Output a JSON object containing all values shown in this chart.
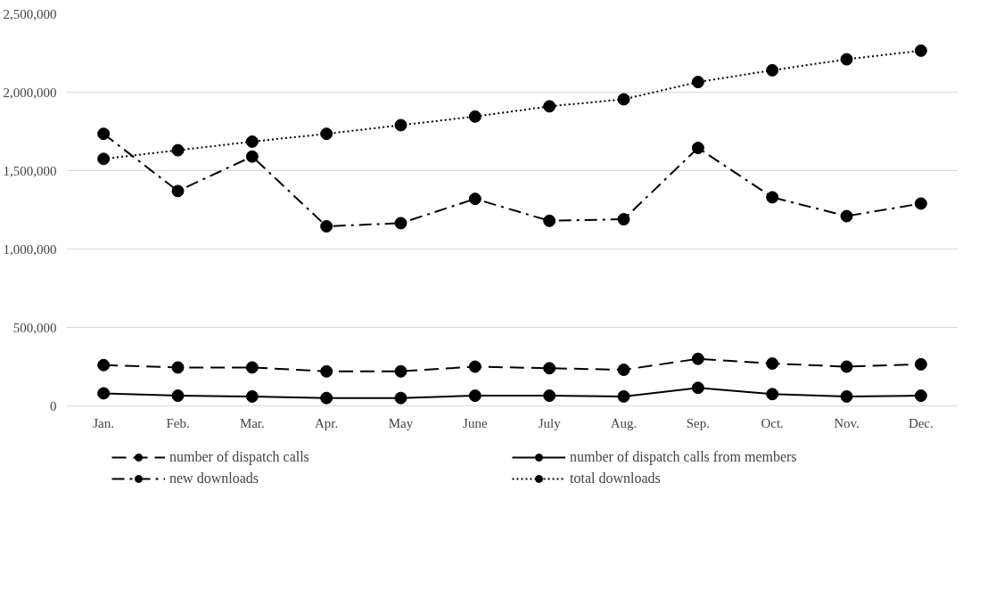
{
  "chart_data": {
    "type": "line",
    "categories": [
      "Jan.",
      "Feb.",
      "Mar.",
      "Apr.",
      "May",
      "June",
      "July",
      "Aug.",
      "Sep.",
      "Oct.",
      "Nov.",
      "Dec."
    ],
    "series": [
      {
        "name": "number of dispatch calls",
        "color": "#000000",
        "line_style": "dashed",
        "values": [
          260000,
          245000,
          245000,
          220000,
          220000,
          250000,
          240000,
          230000,
          300000,
          270000,
          250000,
          265000
        ]
      },
      {
        "name": "number of dispatch calls from members",
        "color": "#000000",
        "line_style": "solid",
        "values": [
          80000,
          65000,
          60000,
          50000,
          50000,
          65000,
          65000,
          60000,
          115000,
          75000,
          60000,
          65000
        ]
      },
      {
        "name": "new downloads",
        "color": "#000000",
        "line_style": "dashdot",
        "values": [
          1735000,
          1370000,
          1590000,
          1145000,
          1165000,
          1320000,
          1180000,
          1190000,
          1645000,
          1330000,
          1210000,
          1290000
        ]
      },
      {
        "name": "total downloads",
        "color": "#000000",
        "line_style": "dotted",
        "values": [
          1575000,
          1630000,
          1685000,
          1735000,
          1790000,
          1845000,
          1910000,
          1955000,
          2065000,
          2140000,
          2210000,
          2265000
        ]
      }
    ],
    "ylim": [
      0,
      2500000
    ],
    "yticks": [
      {
        "value": 0,
        "label": "0"
      },
      {
        "value": 500000,
        "label": "500,000"
      },
      {
        "value": 1000000,
        "label": "1,000,000"
      },
      {
        "value": 1500000,
        "label": "1,500,000"
      },
      {
        "value": 2000000,
        "label": "2,000,000"
      },
      {
        "value": 2500000,
        "label": "2,500,000"
      }
    ],
    "grid": "y",
    "legend": "bottom",
    "marker": "circle"
  }
}
